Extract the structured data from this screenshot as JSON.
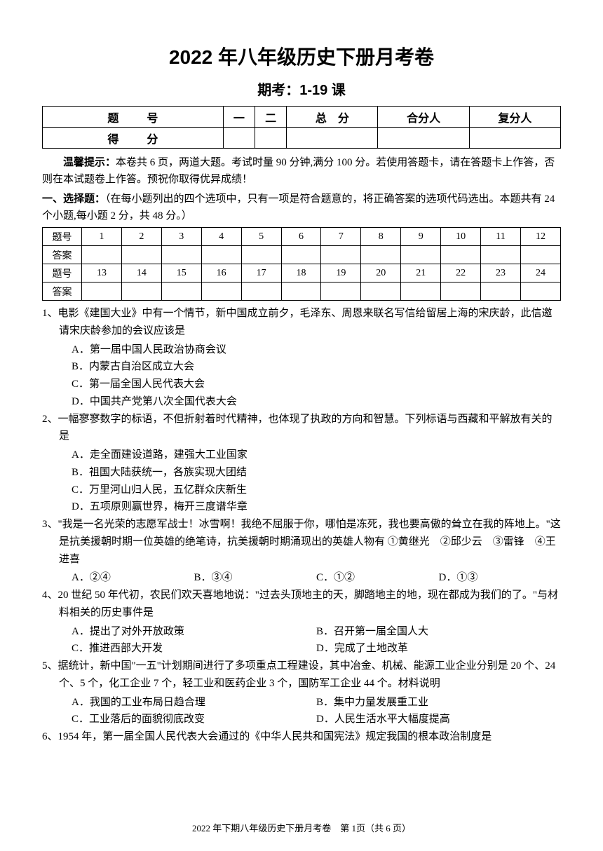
{
  "title": "2022 年八年级历史下册月考卷",
  "subtitle": "期考：1-19 课",
  "scoreTable": {
    "row1": [
      "题　号",
      "一",
      "二",
      "总　分",
      "合分人",
      "复分人"
    ],
    "row2Label": "得　分"
  },
  "notice": {
    "label": "温馨提示：",
    "text": "本卷共 6 页，两道大题。考试时量 90 分钟,满分 100 分。若使用答题卡，请在答题卡上作答，否则在本试题卷上作答。预祝你取得优异成绩！"
  },
  "section1": {
    "label": "一、选择题：",
    "desc": "（在每小题列出的四个选项中，只有一项是符合题意的，将正确答案的选项代码选出。本题共有 24 个小题,每小题 2 分，共 48 分。）"
  },
  "answerTable": {
    "rowLabels": [
      "题号",
      "答案",
      "题号",
      "答案"
    ],
    "nums1": [
      "1",
      "2",
      "3",
      "4",
      "5",
      "6",
      "7",
      "8",
      "9",
      "10",
      "11",
      "12"
    ],
    "nums2": [
      "13",
      "14",
      "15",
      "16",
      "17",
      "18",
      "19",
      "20",
      "21",
      "22",
      "23",
      "24"
    ]
  },
  "questions": [
    {
      "num": "1、",
      "text": "电影《建国大业》中有一个情节，新中国成立前夕，毛泽东、周恩来联名写信给留居上海的宋庆龄，此信邀请宋庆龄参加的会议应该是",
      "opts": [
        "A．第一届中国人民政治协商会议",
        "B．内蒙古自治区成立大会",
        "C．第一届全国人民代表大会",
        "D．中国共产党第八次全国代表大会"
      ],
      "layout": "stack"
    },
    {
      "num": "2、",
      "text": "一幅寥寥数字的标语，不但折射着时代精神，也体现了执政的方向和智慧。下列标语与西藏和平解放有关的是",
      "opts": [
        "A．走全面建设道路，建强大工业国家",
        "B．祖国大陆获统一，各族实现大团结",
        "C．万里河山归人民，五亿群众庆新生",
        "D．五项原则赢世界，梅开三度谱华章"
      ],
      "layout": "stack"
    },
    {
      "num": "3、",
      "text": "\"我是一名光荣的志愿军战士！冰雪啊！我绝不屈服于你，哪怕是冻死，我也要高傲的耸立在我的阵地上。\"这是抗美援朝时期一位英雄的绝笔诗，抗美援朝时期涌现出的英雄人物有  ①黄继光　②邱少云　③雷锋　④王进喜",
      "opts": [
        "A．②④",
        "B．③④",
        "C．①②",
        "D．①③"
      ],
      "layout": "four"
    },
    {
      "num": "4、",
      "text": "20 世纪 50 年代初，农民们欢天喜地地说：\"过去头顶地主的天，脚踏地主的地，现在都成为我们的了。\"与材料相关的历史事件是",
      "opts": [
        "A．提出了对外开放政策",
        "B．召开第一届全国人大",
        "C．推进西部大开发",
        "D．完成了土地改革"
      ],
      "layout": "two"
    },
    {
      "num": "5、",
      "text": "据统计，新中国\"一五\"计划期间进行了多项重点工程建设，其中冶金、机械、能源工业企业分别是 20 个、24 个、5 个，化工企业 7 个，轻工业和医药企业 3 个，国防军工企业 44 个。材料说明",
      "opts": [
        "A．我国的工业布局日趋合理",
        "B．集中力量发展重工业",
        "C．工业落后的面貌彻底改变",
        "D．人民生活水平大幅度提高"
      ],
      "layout": "two"
    },
    {
      "num": "6、",
      "text": "1954 年，第一届全国人民代表大会通过的《中华人民共和国宪法》规定我国的根本政治制度是",
      "opts": [],
      "layout": "none"
    }
  ],
  "footer": "2022 年下期八年级历史下册月考卷　第 1页（共 6 页）"
}
